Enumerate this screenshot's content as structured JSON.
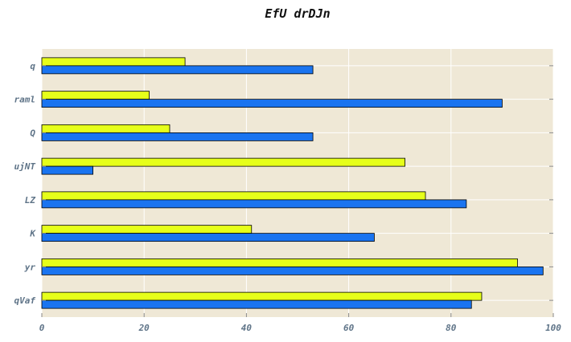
{
  "chart_data": {
    "type": "bar",
    "orientation": "horizontal",
    "title": "EfU drDJn",
    "categories": [
      "q",
      "raml",
      "Q",
      "ujNT",
      "LZ",
      "K",
      "yr",
      "qVaf"
    ],
    "series": [
      {
        "color": "#e6ff1a",
        "values": [
          28,
          21,
          25,
          71,
          75,
          41,
          93,
          86
        ]
      },
      {
        "color": "#1a74f0",
        "values": [
          53,
          90,
          53,
          10,
          83,
          65,
          98,
          84
        ]
      }
    ],
    "x_ticks": [
      "0",
      "20",
      "40",
      "60",
      "80",
      "100"
    ],
    "xlim": [
      0,
      100
    ],
    "grid": true,
    "legend": "none",
    "background": "#efe8d6"
  }
}
